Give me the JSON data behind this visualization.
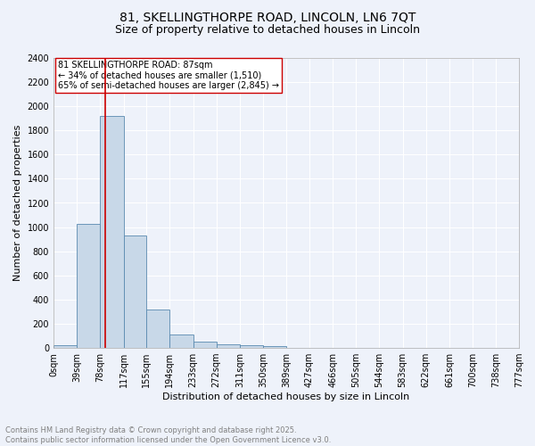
{
  "title": "81, SKELLINGTHORPE ROAD, LINCOLN, LN6 7QT",
  "subtitle": "Size of property relative to detached houses in Lincoln",
  "xlabel": "Distribution of detached houses by size in Lincoln",
  "ylabel": "Number of detached properties",
  "bar_color": "#c8d8e8",
  "bar_edge_color": "#5a8ab0",
  "background_color": "#eef2fa",
  "grid_color": "#ffffff",
  "bin_edges": [
    0,
    39,
    78,
    117,
    155,
    194,
    233,
    272,
    311,
    350,
    389,
    427,
    466,
    505,
    544,
    583,
    622,
    661,
    700,
    738,
    777
  ],
  "bin_labels": [
    "0sqm",
    "39sqm",
    "78sqm",
    "117sqm",
    "155sqm",
    "194sqm",
    "233sqm",
    "272sqm",
    "311sqm",
    "350sqm",
    "389sqm",
    "427sqm",
    "466sqm",
    "505sqm",
    "544sqm",
    "583sqm",
    "622sqm",
    "661sqm",
    "700sqm",
    "738sqm",
    "777sqm"
  ],
  "bar_heights": [
    20,
    1030,
    1920,
    930,
    320,
    110,
    55,
    30,
    20,
    15,
    0,
    0,
    0,
    0,
    0,
    0,
    0,
    0,
    0,
    0
  ],
  "property_size": 87,
  "red_line_color": "#cc0000",
  "ylim": [
    0,
    2400
  ],
  "yticks": [
    0,
    200,
    400,
    600,
    800,
    1000,
    1200,
    1400,
    1600,
    1800,
    2000,
    2200,
    2400
  ],
  "annotation_text": "81 SKELLINGTHORPE ROAD: 87sqm\n← 34% of detached houses are smaller (1,510)\n65% of semi-detached houses are larger (2,845) →",
  "annotation_box_color": "#ffffff",
  "annotation_border_color": "#cc0000",
  "footer_line1": "Contains HM Land Registry data © Crown copyright and database right 2025.",
  "footer_line2": "Contains public sector information licensed under the Open Government Licence v3.0.",
  "footer_color": "#808080",
  "title_fontsize": 10,
  "subtitle_fontsize": 9,
  "axis_label_fontsize": 8,
  "tick_fontsize": 7,
  "annotation_fontsize": 7,
  "footer_fontsize": 6
}
